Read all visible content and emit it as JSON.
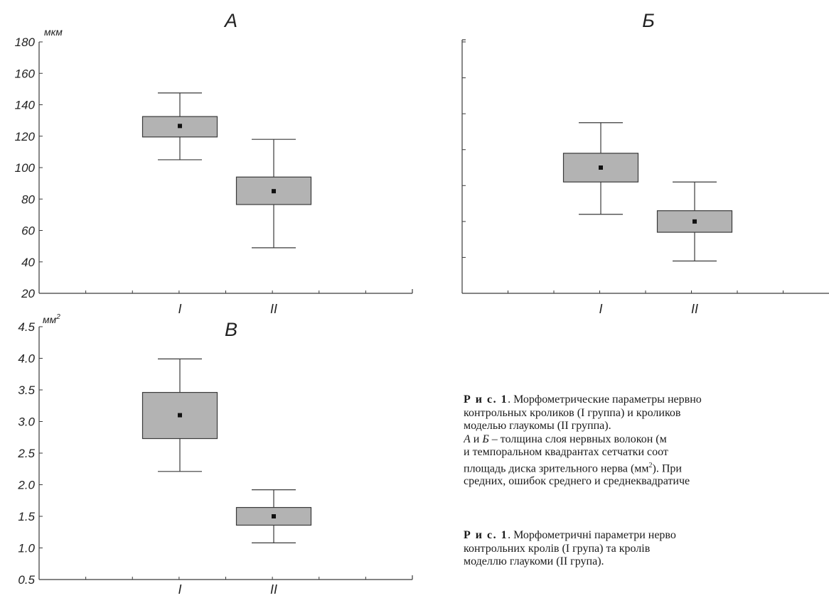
{
  "chart_data": [
    {
      "type": "boxplot",
      "title": "А",
      "unit": "мкм",
      "ylim": [
        20,
        180
      ],
      "yticks": [
        "20",
        "40",
        "60",
        "80",
        "100",
        "120",
        "140",
        "160",
        "180"
      ],
      "categories": [
        "I",
        "II"
      ],
      "boxes": [
        {
          "category": "I",
          "mean": 126.5,
          "box_low": 119.5,
          "box_high": 132.5,
          "whisker_low": 105,
          "whisker_high": 147.5
        },
        {
          "category": "II",
          "mean": 85,
          "box_low": 76.5,
          "box_high": 94,
          "whisker_low": 49,
          "whisker_high": 118
        }
      ]
    },
    {
      "type": "boxplot",
      "title": "Б",
      "unit": "",
      "ylim": [
        0,
        7
      ],
      "yticks": [
        "",
        "",
        "",
        "",
        "",
        "",
        "",
        ""
      ],
      "categories": [
        "I",
        "II"
      ],
      "boxes": [
        {
          "category": "I",
          "mean": 3.5,
          "box_low": 3.1,
          "box_high": 3.9,
          "whisker_low": 2.2,
          "whisker_high": 4.75
        },
        {
          "category": "II",
          "mean": 2.0,
          "box_low": 1.7,
          "box_high": 2.3,
          "whisker_low": 0.9,
          "whisker_high": 3.1
        }
      ]
    },
    {
      "type": "boxplot",
      "title": "В",
      "unit": "мм",
      "unit_sup": "2",
      "ylim": [
        0.5,
        4.5
      ],
      "yticks": [
        "0.5",
        "1.0",
        "1.5",
        "2.0",
        "2.5",
        "3.0",
        "3.5",
        "4.0",
        "4.5"
      ],
      "categories": [
        "I",
        "II"
      ],
      "boxes": [
        {
          "category": "I",
          "mean": 3.1,
          "box_low": 2.73,
          "box_high": 3.46,
          "whisker_low": 2.21,
          "whisker_high": 3.99
        },
        {
          "category": "II",
          "mean": 1.5,
          "box_low": 1.36,
          "box_high": 1.64,
          "whisker_low": 1.08,
          "whisker_high": 1.92
        }
      ]
    }
  ],
  "caption_ru": {
    "fig_label": "Р и с. 1",
    "line1": ". Морфометрические параметры нервно",
    "line2": "контрольных кроликов (I группа) и кроликов",
    "line3": "моделью глаукомы (II группа).",
    "line4_a": "А",
    "line4_b": " и ",
    "line4_c": "Б",
    "line4_d": " – толщина слоя нервных волокон (м",
    "line5": "и темпоральном квадрантах сетчатки соот",
    "line6_a": "площадь диска зрительного нерва (мм",
    "line6_sup": "2",
    "line6_b": "). При",
    "line7": "средних, ошибок среднего и среднеквадратиче"
  },
  "caption_uk": {
    "fig_label": "Р и с. 1",
    "line1": ". Морфометричні параметри нерво",
    "line2": "контрольних кролів (I група) та кролів",
    "line3": "моделлю глаукоми (II група)."
  },
  "colors": {
    "box_fill": "#b3b3b3",
    "line": "#3a3a3a",
    "mean_marker": "#111111"
  }
}
